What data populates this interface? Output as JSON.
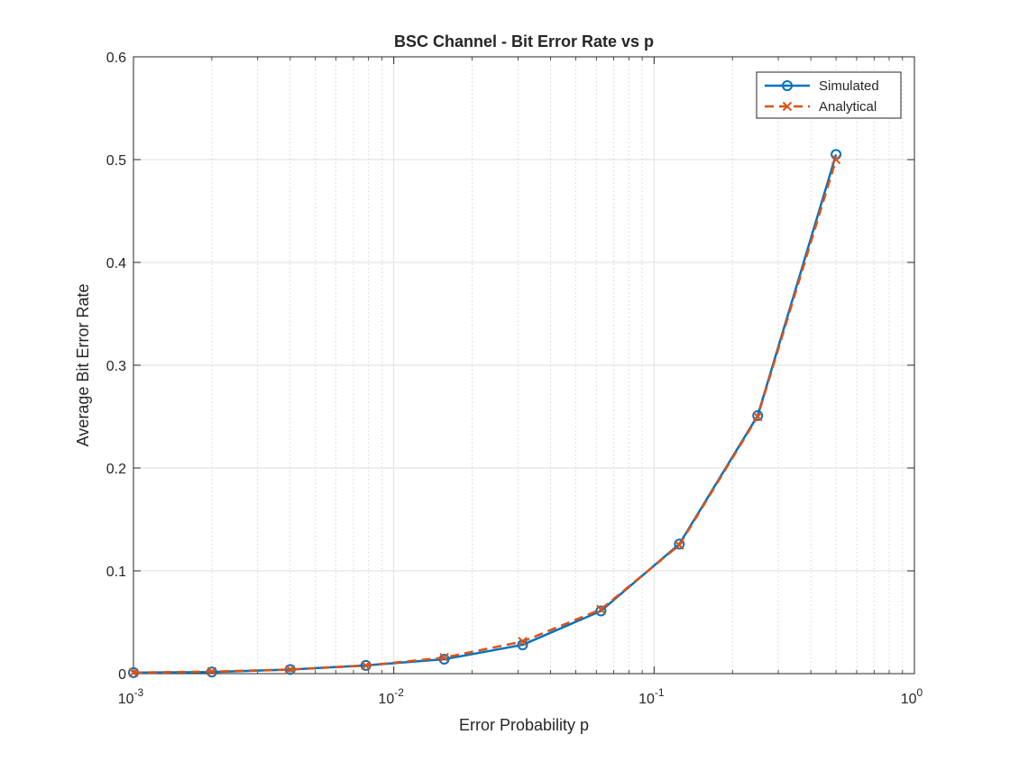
{
  "chart_data": {
    "type": "line",
    "title": "BSC Channel - Bit Error Rate vs p",
    "xlabel": "Error Probability p",
    "ylabel": "Average Bit Error Rate",
    "x_scale": "log",
    "xlim": [
      0.001,
      1
    ],
    "ylim": [
      0,
      0.6
    ],
    "grid": true,
    "legend_position": "top-right",
    "x_ticks": [
      {
        "value": 0.001,
        "base": "10",
        "exp": "-3"
      },
      {
        "value": 0.01,
        "base": "10",
        "exp": "-2"
      },
      {
        "value": 0.1,
        "base": "10",
        "exp": "-1"
      },
      {
        "value": 1,
        "base": "10",
        "exp": "0"
      }
    ],
    "y_ticks": [
      {
        "value": 0,
        "label": "0"
      },
      {
        "value": 0.1,
        "label": "0.1"
      },
      {
        "value": 0.2,
        "label": "0.2"
      },
      {
        "value": 0.3,
        "label": "0.3"
      },
      {
        "value": 0.4,
        "label": "0.4"
      },
      {
        "value": 0.5,
        "label": "0.5"
      },
      {
        "value": 0.6,
        "label": "0.6"
      }
    ],
    "x": [
      0.001,
      0.002,
      0.004,
      0.0078125,
      0.015625,
      0.03125,
      0.0625,
      0.125,
      0.25,
      0.5
    ],
    "series": [
      {
        "name": "Simulated",
        "color": "#0072BD",
        "line_style": "solid",
        "marker": "circle",
        "values": [
          0.001,
          0.0015,
          0.004,
          0.008,
          0.014,
          0.028,
          0.061,
          0.126,
          0.251,
          0.505
        ]
      },
      {
        "name": "Analytical",
        "color": "#D95319",
        "line_style": "dashed",
        "marker": "x",
        "values": [
          0.001,
          0.002,
          0.004,
          0.0078125,
          0.015625,
          0.03125,
          0.0625,
          0.125,
          0.25,
          0.5
        ]
      }
    ]
  }
}
